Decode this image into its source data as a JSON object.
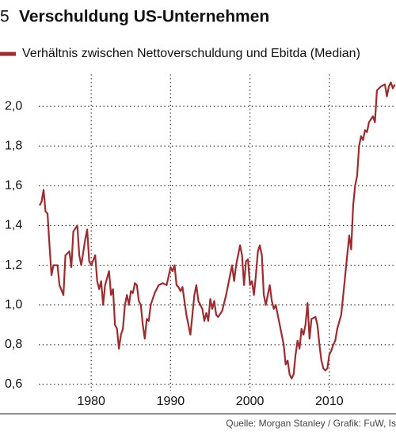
{
  "chart_data": {
    "type": "line",
    "title_number": "5",
    "title": "Verschuldung US-Unternehmen",
    "source": "Quelle: Morgan Stanley / Grafik: FuW, Is",
    "grid": true,
    "xlim": [
      1973,
      2018.4
    ],
    "xticks": [
      1980,
      1990,
      2000,
      2010
    ],
    "ylim": [
      0.56,
      2.16
    ],
    "yticks": [
      {
        "value": 0.6,
        "label": "0,6"
      },
      {
        "value": 0.8,
        "label": "0,8"
      },
      {
        "value": 1.0,
        "label": "1,0"
      },
      {
        "value": 1.2,
        "label": "1,2"
      },
      {
        "value": 1.4,
        "label": "1,4"
      },
      {
        "value": 1.6,
        "label": "1,6"
      },
      {
        "value": 1.8,
        "label": "1,8"
      },
      {
        "value": 2.0,
        "label": "2,0"
      }
    ],
    "x": [
      1973.5,
      1973.75,
      1974,
      1974.25,
      1974.5,
      1974.75,
      1975,
      1975.25,
      1975.75,
      1976,
      1976.5,
      1976.75,
      1977.25,
      1977.5,
      1977.75,
      1978.25,
      1978.5,
      1978.75,
      1979.25,
      1979.5,
      1979.75,
      1980,
      1980.5,
      1980.75,
      1981,
      1981.25,
      1981.5,
      1981.75,
      1982.25,
      1982.5,
      1982.75,
      1983,
      1983.25,
      1983.5,
      1983.75,
      1984,
      1984.25,
      1984.5,
      1984.75,
      1985,
      1985.25,
      1985.5,
      1985.75,
      1986,
      1986.25,
      1986.5,
      1986.75,
      1987,
      1987.25,
      1987.5,
      1988,
      1988.5,
      1989,
      1989.5,
      1990,
      1990.25,
      1990.5,
      1990.75,
      1991,
      1991.25,
      1991.5,
      1992,
      1992.25,
      1992.5,
      1992.75,
      1993,
      1993.25,
      1993.5,
      1994,
      1994.25,
      1994.5,
      1994.75,
      1995,
      1995.25,
      1995.5,
      1995.75,
      1996,
      1996.5,
      1997,
      1997.5,
      1997.75,
      1998,
      1998.25,
      1998.75,
      1999,
      1999.25,
      1999.5,
      1999.75,
      2000,
      2000.25,
      2000.5,
      2000.75,
      2001,
      2001.25,
      2001.5,
      2001.75,
      2002,
      2002.25,
      2002.5,
      2002.75,
      2003,
      2003.25,
      2003.5,
      2004,
      2004.25,
      2004.5,
      2004.75,
      2005,
      2005.25,
      2005.5,
      2005.75,
      2006,
      2006.25,
      2006.5,
      2006.75,
      2007,
      2007.25,
      2007.5,
      2007.75,
      2008.25,
      2008.5,
      2008.75,
      2009,
      2009.25,
      2009.5,
      2009.75,
      2010,
      2010.25,
      2010.5,
      2010.75,
      2011,
      2011.5,
      2011.75,
      2012,
      2012.25,
      2012.5,
      2012.75,
      2013,
      2013.25,
      2013.5,
      2013.75,
      2014,
      2014.25,
      2014.5,
      2014.75,
      2015,
      2015.5,
      2015.75,
      2016,
      2016.5,
      2017,
      2017.25,
      2017.5,
      2017.75,
      2018,
      2018.25
    ],
    "series": [
      {
        "name": "Verhältnis zwischen Nettoverschuldung und Ebitda (Median)",
        "color": "#9b2d30",
        "values": [
          1.5,
          1.52,
          1.58,
          1.47,
          1.46,
          1.3,
          1.15,
          1.2,
          1.2,
          1.1,
          1.05,
          1.25,
          1.27,
          1.19,
          1.37,
          1.4,
          1.25,
          1.2,
          1.33,
          1.38,
          1.22,
          1.2,
          1.25,
          1.12,
          1.08,
          1.12,
          1.0,
          1.1,
          1.17,
          1.05,
          1.08,
          0.9,
          0.88,
          0.78,
          0.85,
          0.88,
          1.0,
          1.05,
          1.0,
          1.07,
          1.06,
          1.11,
          1.1,
          1.02,
          1.0,
          0.9,
          0.83,
          0.93,
          0.92,
          1.0,
          1.06,
          1.1,
          1.11,
          1.1,
          1.19,
          1.17,
          1.2,
          1.1,
          1.09,
          1.07,
          1.09,
          0.95,
          0.9,
          0.85,
          0.95,
          1.05,
          1.1,
          1.02,
          0.98,
          0.92,
          0.96,
          0.92,
          1.03,
          0.98,
          1.02,
          0.95,
          0.94,
          0.97,
          1.05,
          1.15,
          1.2,
          1.12,
          1.2,
          1.3,
          1.25,
          1.1,
          1.22,
          1.23,
          1.1,
          1.12,
          1.05,
          1.15,
          1.27,
          1.3,
          1.25,
          1.05,
          1.0,
          1.05,
          1.1,
          1.02,
          0.98,
          1.0,
          0.95,
          0.85,
          0.8,
          0.7,
          0.72,
          0.65,
          0.63,
          0.65,
          0.75,
          0.82,
          0.78,
          0.88,
          0.85,
          0.9,
          1.01,
          0.83,
          0.93,
          0.94,
          0.9,
          0.8,
          0.72,
          0.68,
          0.67,
          0.68,
          0.75,
          0.77,
          0.8,
          0.82,
          0.88,
          0.95,
          1.05,
          1.15,
          1.25,
          1.35,
          1.28,
          1.5,
          1.6,
          1.65,
          1.8,
          1.85,
          1.83,
          1.88,
          1.87,
          1.92,
          1.95,
          1.92,
          2.08,
          2.1,
          2.11,
          2.05,
          2.1,
          2.12,
          2.09,
          2.11
        ]
      }
    ]
  }
}
